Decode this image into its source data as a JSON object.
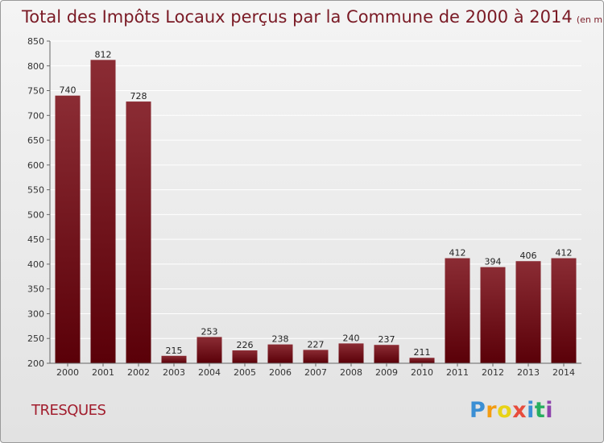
{
  "chart_data": {
    "type": "bar",
    "title": "Total des Impôts Locaux perçus par la Commune de 2000 à 2014",
    "subtitle": "(en milliers d'€)",
    "xlabel": "",
    "ylabel": "",
    "categories": [
      "2000",
      "2001",
      "2002",
      "2003",
      "2004",
      "2005",
      "2006",
      "2007",
      "2008",
      "2009",
      "2010",
      "2011",
      "2012",
      "2013",
      "2014"
    ],
    "values": [
      740,
      812,
      728,
      215,
      253,
      226,
      238,
      227,
      240,
      237,
      211,
      412,
      394,
      406,
      412
    ],
    "ylim": [
      200,
      850
    ],
    "yticks": [
      200,
      250,
      300,
      350,
      400,
      450,
      500,
      550,
      600,
      650,
      700,
      750,
      800,
      850
    ],
    "grid": true,
    "legend": "none",
    "colors": {
      "bar_top": "#8b2c34",
      "bar_bottom": "#5a0008",
      "title": "#7a1a25"
    }
  },
  "commune": "TRESQUES",
  "logo": {
    "letters": [
      "P",
      "r",
      "o",
      "x",
      "i",
      "t",
      "i"
    ],
    "colors": [
      "#3b8fd4",
      "#f39c12",
      "#e8d317",
      "#e74c3c",
      "#3b8fd4",
      "#27ae60",
      "#8e44ad"
    ]
  }
}
